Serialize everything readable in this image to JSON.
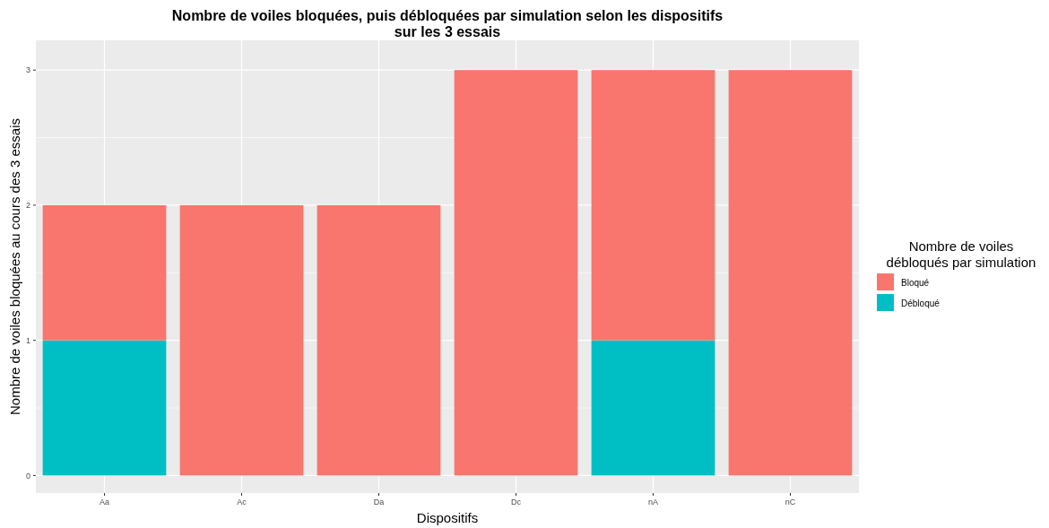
{
  "chart_data": {
    "type": "bar",
    "title": "Nombre de voiles bloquées, puis débloquées par simulation selon les dispositifs\nsur les 3 essais",
    "xlabel": "Dispositifs",
    "ylabel": "Nombre de voiles bloquées au cours des 3 essais",
    "legend_title": "Nombre de voiles\ndébloqués par simulation",
    "categories": [
      "Aa",
      "Ac",
      "Da",
      "Dc",
      "nA",
      "nC"
    ],
    "stacked": true,
    "series": [
      {
        "name": "Débloqué",
        "color": "#00bfc4",
        "values": [
          1,
          0,
          0,
          0,
          1,
          0
        ]
      },
      {
        "name": "Bloqué",
        "color": "#f8766d",
        "values": [
          1,
          2,
          2,
          3,
          2,
          3
        ]
      }
    ],
    "ylim": [
      -0.13,
      3.22
    ],
    "yticks": [
      0,
      1,
      2,
      3
    ],
    "grid": true,
    "legend": "right"
  }
}
